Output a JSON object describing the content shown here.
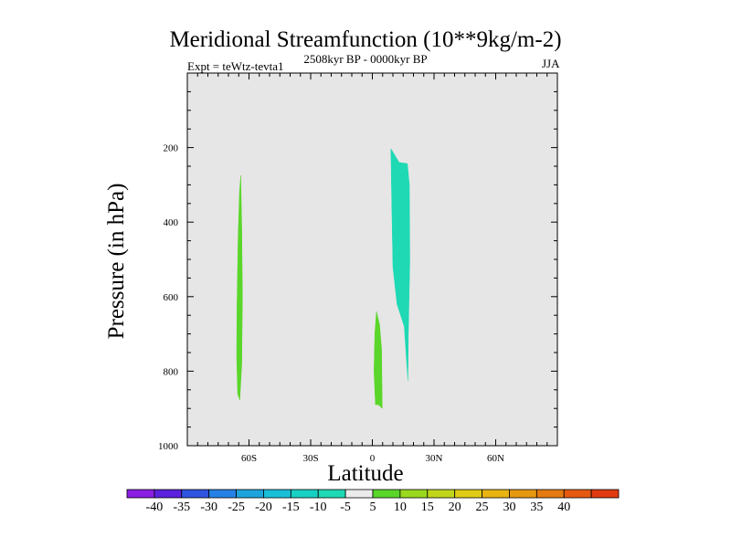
{
  "chart_data": {
    "type": "heatmap",
    "title": "Meridional Streamfunction (10**9kg/m-2)",
    "subtitle": "2508kyr BP - 0000kyr BP",
    "experiment_label": "Expt = teWtz-tevta1",
    "season": "JJA",
    "xlabel": "Latitude",
    "ylabel": "Pressure (in hPa)",
    "xlim": [
      -90,
      90
    ],
    "ylim": [
      1000,
      0
    ],
    "x_ticks": [
      {
        "value": -60,
        "label": "60S"
      },
      {
        "value": -30,
        "label": "30S"
      },
      {
        "value": 0,
        "label": "0"
      },
      {
        "value": 30,
        "label": "30N"
      },
      {
        "value": 60,
        "label": "60N"
      }
    ],
    "y_ticks": [
      {
        "value": 200,
        "label": "200"
      },
      {
        "value": 400,
        "label": "400"
      },
      {
        "value": 600,
        "label": "600"
      },
      {
        "value": 800,
        "label": "800"
      },
      {
        "value": 1000,
        "label": "1000"
      }
    ],
    "background_color": "#e6e6e6",
    "colorbar": {
      "colors": [
        "#8a1ee3",
        "#5a22dc",
        "#2f54e0",
        "#2581e6",
        "#1ea4dd",
        "#19bfd8",
        "#16d0c3",
        "#1ed9b4",
        "#ebebeb",
        "#5ad62a",
        "#99d81d",
        "#c1d61a",
        "#e0cc16",
        "#e8b412",
        "#e69810",
        "#e57a10",
        "#e55a10",
        "#e23a10"
      ],
      "labels": [
        "-40",
        "-35",
        "-30",
        "-25",
        "-20",
        "-15",
        "-10",
        "-5",
        "5",
        "10",
        "15",
        "20",
        "25",
        "30",
        "35",
        "40"
      ]
    },
    "regions": [
      {
        "name": "southern-high-latitude-positive",
        "level": "5 to 10",
        "color": "#5ad62a",
        "points": [
          [
            -64,
            275
          ],
          [
            -63.5,
            420
          ],
          [
            -63.2,
            600
          ],
          [
            -63.5,
            780
          ],
          [
            -64.5,
            878
          ],
          [
            -65.5,
            860
          ],
          [
            -66,
            760
          ],
          [
            -65.8,
            620
          ],
          [
            -65.3,
            440
          ],
          [
            -64.6,
            320
          ]
        ]
      },
      {
        "name": "near-equator-positive",
        "level": "5 to 10",
        "color": "#5ad62a",
        "points": [
          [
            2,
            640
          ],
          [
            3.5,
            675
          ],
          [
            4.5,
            740
          ],
          [
            4.8,
            900
          ],
          [
            3,
            890
          ],
          [
            1.5,
            890
          ],
          [
            0.8,
            800
          ],
          [
            1.2,
            700
          ]
        ]
      },
      {
        "name": "northern-tropics-negative",
        "level": "-10 to -5",
        "color": "#1ed9b4",
        "points": [
          [
            9,
            203
          ],
          [
            13,
            240
          ],
          [
            17,
            243
          ],
          [
            18,
            300
          ],
          [
            18.2,
            500
          ],
          [
            17.5,
            700
          ],
          [
            17.3,
            825
          ],
          [
            15.5,
            680
          ],
          [
            12,
            620
          ],
          [
            10,
            520
          ],
          [
            9.3,
            300
          ]
        ]
      }
    ]
  }
}
